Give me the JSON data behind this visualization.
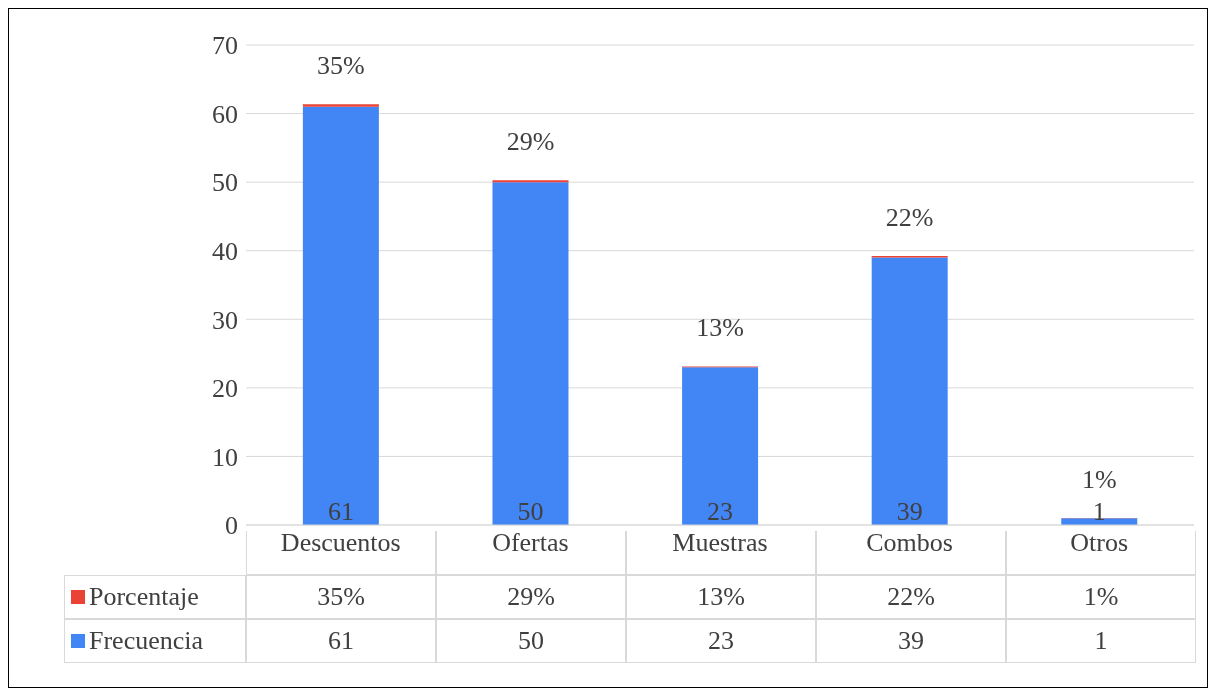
{
  "chart_data": {
    "type": "bar",
    "stacked": true,
    "categories": [
      "Descuentos",
      "Ofertas",
      "Muestras",
      "Combos",
      "Otros"
    ],
    "series": [
      {
        "name": "Frecuencia",
        "color": "#4285f4",
        "values": [
          61,
          50,
          23,
          39,
          1
        ],
        "value_labels": [
          "61",
          "50",
          "23",
          "39",
          "1"
        ]
      },
      {
        "name": "Porcentaje",
        "color": "#ea4335",
        "values": [
          0.35,
          0.29,
          0.13,
          0.22,
          0.01
        ],
        "value_labels": [
          "35%",
          "29%",
          "13%",
          "22%",
          "1%"
        ]
      }
    ],
    "data_labels": true,
    "ylim": [
      0,
      70
    ],
    "yticks": [
      0,
      10,
      20,
      30,
      40,
      50,
      60,
      70
    ],
    "grid": "y",
    "legend": "bottom"
  }
}
